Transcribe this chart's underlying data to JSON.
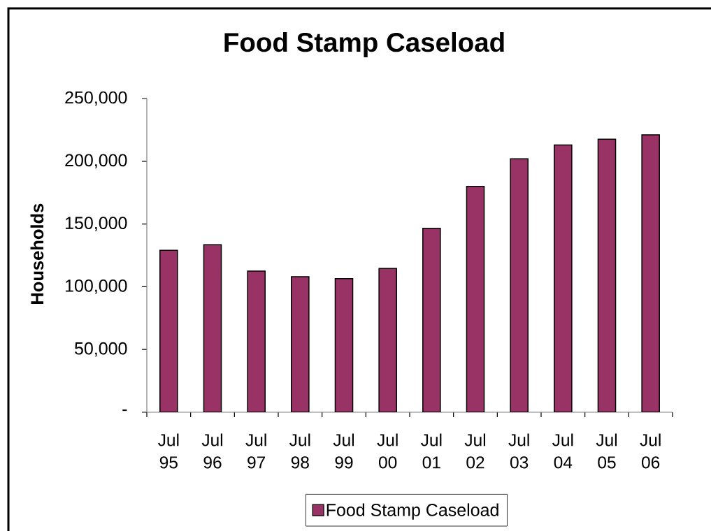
{
  "chart_data": {
    "type": "bar",
    "title": "Food Stamp Caseload",
    "ylabel": "Households",
    "categories": [
      "Jul 95",
      "Jul 96",
      "Jul 97",
      "Jul 98",
      "Jul 99",
      "Jul 00",
      "Jul 01",
      "Jul 02",
      "Jul 03",
      "Jul 04",
      "Jul 05",
      "Jul 06"
    ],
    "series": [
      {
        "name": "Food Stamp Caseload",
        "color": "#993366",
        "values": [
          129000,
          133500,
          112500,
          108000,
          106500,
          114500,
          146500,
          180000,
          202000,
          213000,
          217500,
          221000
        ]
      }
    ],
    "ylim": [
      0,
      250000
    ],
    "yticks": [
      {
        "value": 0,
        "label": "-"
      },
      {
        "value": 50000,
        "label": "50,000"
      },
      {
        "value": 100000,
        "label": "100,000"
      },
      {
        "value": 150000,
        "label": "150,000"
      },
      {
        "value": 200000,
        "label": "200,000"
      },
      {
        "value": 250000,
        "label": "250,000"
      }
    ],
    "legend": "bottom"
  }
}
